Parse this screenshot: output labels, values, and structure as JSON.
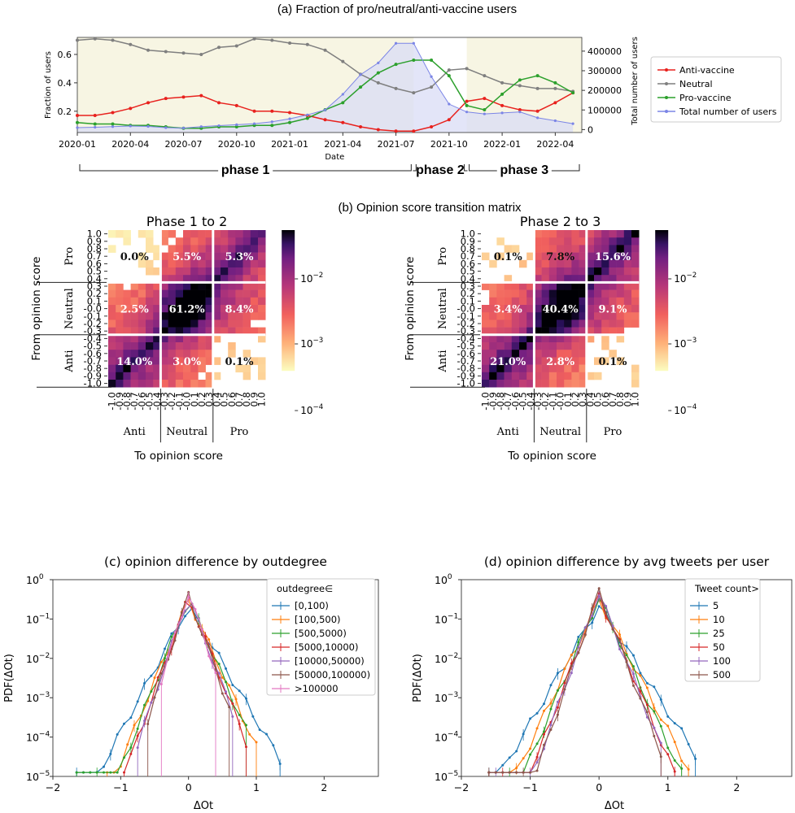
{
  "chart_data": [
    {
      "id": "a",
      "type": "line",
      "title": "(a) Fraction of pro/neutral/anti-vaccine users",
      "xlabel": "Date",
      "ylabel": "Fraction of users",
      "y2label": "Total number of users",
      "xticks": [
        "2020-01",
        "2020-04",
        "2020-07",
        "2020-10",
        "2021-01",
        "2021-04",
        "2021-07",
        "2021-10",
        "2022-01",
        "2022-04"
      ],
      "yticks": [
        "0.2",
        "0.4",
        "0.6"
      ],
      "y2ticks": [
        "0",
        "100000",
        "200000",
        "300000",
        "400000"
      ],
      "ylim": [
        0.05,
        0.72
      ],
      "y2lim": [
        -15000,
        470000
      ],
      "xlim": [
        0,
        28.5
      ],
      "phases": [
        {
          "label": "phase 1",
          "from": 0,
          "to": 19,
          "shaded": true
        },
        {
          "label": "phase 2",
          "from": 19,
          "to": 22,
          "shaded": false
        },
        {
          "label": "phase 3",
          "from": 22,
          "to": 28.5,
          "shaded": true
        }
      ],
      "series": [
        {
          "name": "Anti-vaccine",
          "color": "#e8211d",
          "axis": "left",
          "x": [
            0,
            1,
            2,
            3,
            4,
            5,
            6,
            7,
            8,
            9,
            10,
            11,
            12,
            13,
            14,
            15,
            16,
            17,
            18,
            19,
            20,
            21,
            22,
            23,
            24,
            25,
            26,
            27,
            28
          ],
          "values": [
            0.17,
            0.17,
            0.19,
            0.22,
            0.26,
            0.29,
            0.3,
            0.31,
            0.26,
            0.24,
            0.2,
            0.2,
            0.19,
            0.17,
            0.14,
            0.12,
            0.09,
            0.07,
            0.06,
            0.06,
            0.09,
            0.14,
            0.27,
            0.29,
            0.24,
            0.21,
            0.2,
            0.26,
            0.33
          ]
        },
        {
          "name": "Neutral",
          "color": "#7f7f7f",
          "axis": "left",
          "x": [
            0,
            1,
            2,
            3,
            4,
            5,
            6,
            7,
            8,
            9,
            10,
            11,
            12,
            13,
            14,
            15,
            16,
            17,
            18,
            19,
            20,
            21,
            22,
            23,
            24,
            25,
            26,
            27,
            28
          ],
          "values": [
            0.7,
            0.71,
            0.7,
            0.67,
            0.63,
            0.62,
            0.61,
            0.6,
            0.65,
            0.66,
            0.71,
            0.7,
            0.68,
            0.67,
            0.63,
            0.55,
            0.46,
            0.4,
            0.36,
            0.33,
            0.37,
            0.49,
            0.5,
            0.45,
            0.4,
            0.38,
            0.36,
            0.36,
            0.34
          ]
        },
        {
          "name": "Pro-vaccine",
          "color": "#2ca02c",
          "axis": "left",
          "x": [
            0,
            1,
            2,
            3,
            4,
            5,
            6,
            7,
            8,
            9,
            10,
            11,
            12,
            13,
            14,
            15,
            16,
            17,
            18,
            19,
            20,
            21,
            22,
            23,
            24,
            25,
            26,
            27,
            28
          ],
          "values": [
            0.12,
            0.11,
            0.11,
            0.1,
            0.1,
            0.09,
            0.08,
            0.08,
            0.09,
            0.09,
            0.1,
            0.1,
            0.12,
            0.15,
            0.21,
            0.26,
            0.37,
            0.47,
            0.53,
            0.56,
            0.56,
            0.45,
            0.24,
            0.21,
            0.32,
            0.42,
            0.45,
            0.4,
            0.33
          ]
        },
        {
          "name": "Total number of users",
          "color": "#7b85e6",
          "axis": "right",
          "fill": true,
          "x": [
            0,
            1,
            2,
            3,
            4,
            5,
            6,
            7,
            8,
            9,
            10,
            11,
            12,
            13,
            14,
            15,
            16,
            17,
            18,
            19,
            20,
            21,
            22,
            23,
            24,
            25,
            26,
            27,
            28
          ],
          "values": [
            10000,
            12000,
            15000,
            18000,
            16000,
            10000,
            8000,
            15000,
            20000,
            25000,
            30000,
            40000,
            55000,
            75000,
            100000,
            180000,
            280000,
            340000,
            440000,
            440000,
            270000,
            130000,
            90000,
            80000,
            85000,
            90000,
            60000,
            45000,
            30000
          ]
        }
      ]
    },
    {
      "id": "b",
      "type": "heatmap",
      "title": "(b) Opinion score transition matrix",
      "xlabel": "To opinion score",
      "ylabel": "From opinion score",
      "xticks": [
        "-1.0",
        "-0.9",
        "-0.8",
        "-0.7",
        "-0.6",
        "-0.5",
        "-0.4",
        "-0.3",
        "-0.2",
        "-0.1",
        "-0.0",
        "0.1",
        "0.2",
        "0.3",
        "0.4",
        "0.5",
        "0.6",
        "0.7",
        "0.8",
        "0.9",
        "1.0"
      ],
      "yticks": [
        "1.0",
        "0.9",
        "0.8",
        "0.7",
        "0.6",
        "0.5",
        "0.4",
        "0.3",
        "0.2",
        "0.1",
        "-0.0",
        "-0.1",
        "-0.2",
        "-0.3",
        "-0.4",
        "-0.5",
        "-0.6",
        "-0.7",
        "-0.8",
        "-0.9",
        "-1.0"
      ],
      "group_labels": [
        "Anti",
        "Neutral",
        "Pro"
      ],
      "colorbar": {
        "type": "log",
        "ticks": [
          "10^-2",
          "10^-3",
          "10^-4"
        ]
      },
      "panels": [
        {
          "title": "Phase 1 to 2",
          "blocks": [
            [
              "0.0%",
              "5.5%",
              "5.3%"
            ],
            [
              "2.5%",
              "61.2%",
              "8.4%"
            ],
            [
              "14.0%",
              "3.0%",
              "0.1%"
            ]
          ]
        },
        {
          "title": "Phase 2 to 3",
          "blocks": [
            [
              "0.1%",
              "7.8%",
              "15.6%"
            ],
            [
              "3.4%",
              "40.4%",
              "9.1%"
            ],
            [
              "21.0%",
              "2.8%",
              "0.1%"
            ]
          ]
        }
      ]
    },
    {
      "id": "c",
      "type": "line",
      "title": "(c) opinion difference by outdegree",
      "xlabel": "ΔOt",
      "ylabel": "PDF(ΔOt)",
      "xlim": [
        -2,
        2.8
      ],
      "ylim_log10": [
        -5,
        0
      ],
      "xticks": [
        "−2",
        "−1",
        "0",
        "1",
        "2"
      ],
      "yticks": [
        "10^0",
        "10^-1",
        "10^-2",
        "10^-3",
        "10^-4",
        "10^-5"
      ],
      "legend_title": "outdegree∈",
      "series": [
        {
          "name": "[0,100)",
          "color": "#1f77b4",
          "peak": 0.21,
          "slope": 7.0,
          "range": [
            -1.65,
            1.4
          ]
        },
        {
          "name": "[100,500)",
          "color": "#ff7f0e",
          "peak": 0.3,
          "slope": 9.0,
          "range": [
            -1.2,
            1.0
          ]
        },
        {
          "name": "[500,5000)",
          "color": "#2ca02c",
          "peak": 0.33,
          "slope": 9.5,
          "range": [
            -1.65,
            0.9
          ]
        },
        {
          "name": "[5000,10000)",
          "color": "#d62728",
          "peak": 0.36,
          "slope": 10.5,
          "range": [
            -0.95,
            0.85
          ]
        },
        {
          "name": "[10000,50000)",
          "color": "#9467bd",
          "peak": 0.38,
          "slope": 11.0,
          "range": [
            -0.75,
            0.7
          ]
        },
        {
          "name": "[50000,100000)",
          "color": "#8c564b",
          "peak": 0.4,
          "slope": 11.5,
          "range": [
            -0.6,
            0.6
          ]
        },
        {
          "name": ">100000",
          "color": "#e377c2",
          "peak": 0.45,
          "slope": 12.0,
          "range": [
            -0.4,
            0.45
          ]
        }
      ]
    },
    {
      "id": "d",
      "type": "line",
      "title": "(d) opinion difference by avg tweets per user",
      "xlabel": "ΔOt",
      "ylabel": "PDF(ΔOt)",
      "xlim": [
        -2,
        2.8
      ],
      "ylim_log10": [
        -5,
        0
      ],
      "xticks": [
        "−2",
        "−1",
        "0",
        "1",
        "2"
      ],
      "yticks": [
        "10^0",
        "10^-1",
        "10^-2",
        "10^-3",
        "10^-4",
        "10^-5"
      ],
      "legend_title": "Tweet count>",
      "series": [
        {
          "name": "5",
          "color": "#1f77b4",
          "peak": 0.21,
          "slope": 6.5,
          "range": [
            -1.6,
            1.4
          ]
        },
        {
          "name": "10",
          "color": "#ff7f0e",
          "peak": 0.3,
          "slope": 8.0,
          "range": [
            -1.6,
            1.3
          ]
        },
        {
          "name": "25",
          "color": "#2ca02c",
          "peak": 0.35,
          "slope": 9.0,
          "range": [
            -1.6,
            1.2
          ]
        },
        {
          "name": "50",
          "color": "#d62728",
          "peak": 0.4,
          "slope": 10.0,
          "range": [
            -1.6,
            1.1
          ]
        },
        {
          "name": "100",
          "color": "#9467bd",
          "peak": 0.45,
          "slope": 10.5,
          "range": [
            -1.6,
            0.9
          ]
        },
        {
          "name": "500",
          "color": "#8c564b",
          "peak": 0.5,
          "slope": 11.0,
          "range": [
            -1.6,
            0.9
          ]
        }
      ]
    }
  ]
}
